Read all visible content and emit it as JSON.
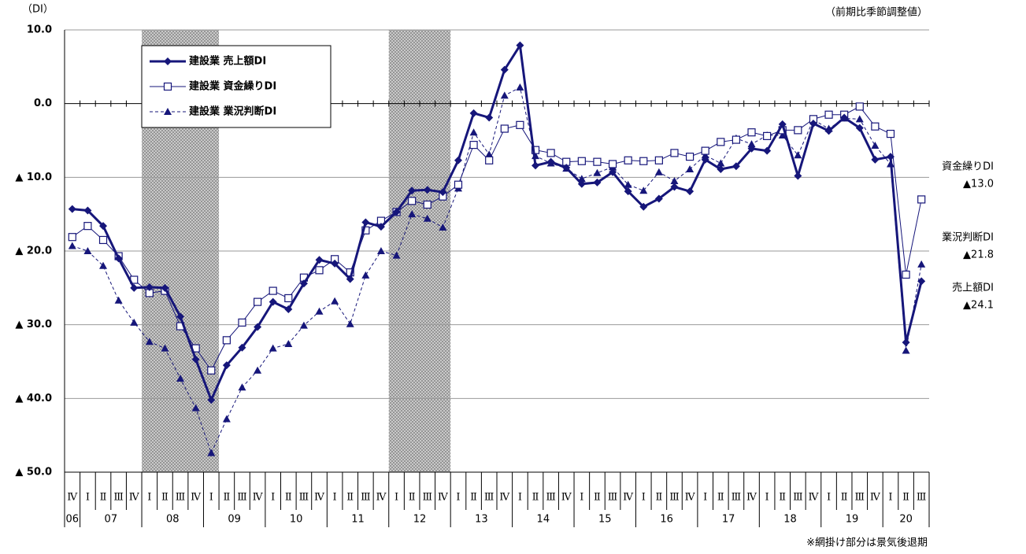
{
  "chart_data": {
    "type": "line",
    "y_unit_label": "（DI）",
    "note_top": "（前期比季節調整値）",
    "footnote": "※網掛け部分は景気後退期",
    "categories": [
      "Ⅳ",
      "Ⅰ",
      "Ⅱ",
      "Ⅲ",
      "Ⅳ",
      "Ⅰ",
      "Ⅱ",
      "Ⅲ",
      "Ⅳ",
      "Ⅰ",
      "Ⅱ",
      "Ⅲ",
      "Ⅳ",
      "Ⅰ",
      "Ⅱ",
      "Ⅲ",
      "Ⅳ",
      "Ⅰ",
      "Ⅱ",
      "Ⅲ",
      "Ⅳ",
      "Ⅰ",
      "Ⅱ",
      "Ⅲ",
      "Ⅳ",
      "Ⅰ",
      "Ⅱ",
      "Ⅲ",
      "Ⅳ",
      "Ⅰ",
      "Ⅱ",
      "Ⅲ",
      "Ⅳ",
      "Ⅰ",
      "Ⅱ",
      "Ⅲ",
      "Ⅳ",
      "Ⅰ",
      "Ⅱ",
      "Ⅲ",
      "Ⅳ",
      "Ⅰ",
      "Ⅱ",
      "Ⅲ",
      "Ⅳ",
      "Ⅰ",
      "Ⅱ",
      "Ⅲ",
      "Ⅳ",
      "Ⅰ",
      "Ⅱ",
      "Ⅲ",
      "Ⅳ",
      "Ⅰ",
      "Ⅱ",
      "Ⅲ"
    ],
    "years": [
      "06",
      "07",
      null,
      null,
      null,
      "08",
      null,
      null,
      null,
      "09",
      null,
      null,
      null,
      "10",
      null,
      null,
      null,
      "11",
      null,
      null,
      null,
      "12",
      null,
      null,
      null,
      "13",
      null,
      null,
      null,
      "14",
      null,
      null,
      null,
      "15",
      null,
      null,
      null,
      "16",
      null,
      null,
      null,
      "17",
      null,
      null,
      null,
      "18",
      null,
      null,
      null,
      "19",
      null,
      null,
      null,
      "20",
      null,
      null
    ],
    "shaded": [
      [
        5,
        9
      ],
      [
        21,
        24
      ]
    ],
    "ylim": [
      -50,
      10
    ],
    "yticks": [
      {
        "value": 10,
        "label": "10.0"
      },
      {
        "value": 0,
        "label": "0.0"
      },
      {
        "value": -10,
        "label": "▲ 10.0"
      },
      {
        "value": -20,
        "label": "▲ 20.0"
      },
      {
        "value": -30,
        "label": "▲ 30.0"
      },
      {
        "value": -40,
        "label": "▲ 40.0"
      },
      {
        "value": -50,
        "label": "▲ 50.0"
      }
    ],
    "grid": true,
    "series": [
      {
        "name": "建設業 売上額DI",
        "color": "#16167a",
        "marker": "diamond",
        "dashed": false,
        "width": 3,
        "values": [
          -14.3,
          -14.5,
          -16.6,
          -21.0,
          -25.0,
          -24.9,
          -25.0,
          -28.9,
          -34.7,
          -40.2,
          -35.5,
          -33.1,
          -30.3,
          -26.9,
          -27.9,
          -24.4,
          -21.2,
          -21.7,
          -23.8,
          -16.1,
          -16.7,
          -14.7,
          -11.8,
          -11.7,
          -12.0,
          -7.7,
          -1.3,
          -1.9,
          4.6,
          7.9,
          -8.4,
          -7.9,
          -8.7,
          -10.9,
          -10.7,
          -9.3,
          -11.9,
          -14.0,
          -12.9,
          -11.3,
          -11.9,
          -7.6,
          -8.9,
          -8.5,
          -6.1,
          -6.4,
          -2.8,
          -9.8,
          -2.7,
          -3.7,
          -1.9,
          -3.3,
          -7.6,
          -7.2,
          -32.4,
          -24.1
        ]
      },
      {
        "name": "建設業 資金繰りDI",
        "color": "#16167a",
        "marker": "square",
        "dashed": false,
        "width": 1,
        "values": [
          -18.1,
          -16.6,
          -18.5,
          -20.7,
          -23.9,
          -25.7,
          -25.4,
          -30.2,
          -33.2,
          -36.2,
          -32.1,
          -29.7,
          -26.9,
          -25.4,
          -26.4,
          -23.6,
          -22.6,
          -21.1,
          -22.9,
          -17.2,
          -15.9,
          -14.7,
          -13.2,
          -13.7,
          -12.6,
          -11.0,
          -5.6,
          -7.7,
          -3.4,
          -2.9,
          -6.3,
          -6.7,
          -7.9,
          -7.8,
          -7.9,
          -8.2,
          -7.7,
          -7.8,
          -7.7,
          -6.7,
          -7.2,
          -6.4,
          -5.2,
          -4.9,
          -3.9,
          -4.4,
          -3.6,
          -3.6,
          -2.1,
          -1.5,
          -1.5,
          -0.4,
          -3.1,
          -4.1,
          -23.2,
          -13.0
        ]
      },
      {
        "name": "建設業 業況判断DI",
        "color": "#16167a",
        "marker": "triangle",
        "dashed": true,
        "width": 1,
        "values": [
          -19.3,
          -20.0,
          -22.0,
          -26.7,
          -29.7,
          -32.3,
          -33.2,
          -37.3,
          -41.3,
          -47.4,
          -42.8,
          -38.5,
          -36.2,
          -33.2,
          -32.6,
          -30.1,
          -28.2,
          -26.8,
          -29.9,
          -23.3,
          -20.0,
          -20.6,
          -15.0,
          -15.6,
          -16.8,
          -11.5,
          -3.9,
          -6.9,
          1.1,
          2.2,
          -7.1,
          -8.1,
          -8.8,
          -10.2,
          -9.4,
          -8.6,
          -11.0,
          -11.8,
          -9.3,
          -10.5,
          -8.9,
          -7.0,
          -8.1,
          -4.7,
          -5.5,
          -4.3,
          -4.3,
          -7.0,
          -2.2,
          -3.4,
          -2.0,
          -2.1,
          -5.7,
          -8.2,
          -33.5,
          -21.8
        ]
      }
    ],
    "annotations": [
      [
        "資金繰りDI",
        "▲13.0"
      ],
      [
        "業況判断DI",
        "▲21.8"
      ],
      [
        "売上額DI",
        "▲24.1"
      ]
    ]
  }
}
